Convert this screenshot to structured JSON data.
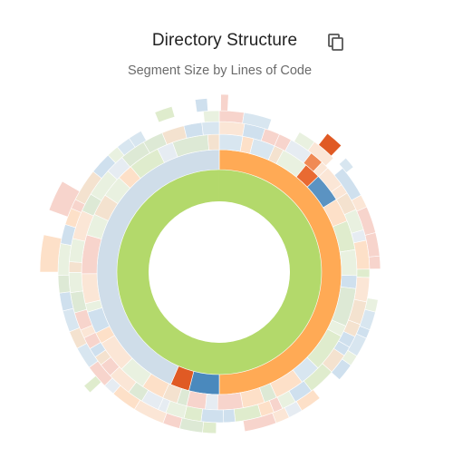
{
  "header": {
    "title": "Directory Structure",
    "subtitle": "Segment Size by Lines of Code",
    "copy_icon": "copy-icon"
  },
  "colors": {
    "root": "#b3d96b",
    "level1_major": "#ffaa55",
    "level1_blue": "#4a89bd",
    "level1_red": "#e05a24",
    "level1_light": "#cfdde9",
    "pastels": [
      "#cfe0ee",
      "#dfeccd",
      "#fde0c8",
      "#f7d4cc",
      "#e9f1e0",
      "#d8e6f0",
      "#fbe6d6",
      "#e6ecf2",
      "#f4e2cf",
      "#dde9d5"
    ]
  },
  "chart_data": {
    "type": "sunburst",
    "title": "Directory Structure",
    "subtitle": "Segment Size by Lines of Code",
    "root": {
      "share": 1.0
    },
    "level1": [
      {
        "share": 0.5
      },
      {
        "share": 0.04
      },
      {
        "share": 0.025
      },
      {
        "share": 0.435
      }
    ]
  }
}
